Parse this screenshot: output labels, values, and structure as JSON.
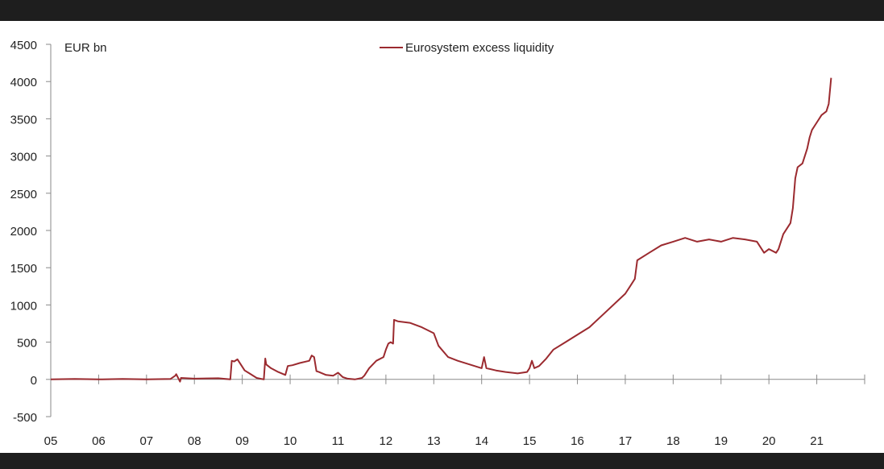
{
  "chart_data": {
    "type": "line",
    "unit_label": "EUR bn",
    "ylim": [
      -500,
      4500
    ],
    "yticks": [
      -500,
      0,
      500,
      1000,
      1500,
      2000,
      2500,
      3000,
      3500,
      4000,
      4500
    ],
    "ytick_labels": [
      "-500",
      "0",
      "500",
      "1000",
      "1500",
      "2000",
      "2500",
      "3000",
      "3500",
      "4000",
      "4500"
    ],
    "xlim": [
      2005,
      2022
    ],
    "xticks": [
      2005,
      2006,
      2007,
      2008,
      2009,
      2010,
      2011,
      2012,
      2013,
      2014,
      2015,
      2016,
      2017,
      2018,
      2019,
      2020,
      2021
    ],
    "xtick_labels": [
      "05",
      "06",
      "07",
      "08",
      "09",
      "10",
      "11",
      "12",
      "13",
      "14",
      "15",
      "16",
      "17",
      "18",
      "19",
      "20",
      "21"
    ],
    "grid": false,
    "legend_position": "top-center",
    "series": [
      {
        "name": "Eurosystem excess liquidity",
        "color": "#9b2a2f",
        "x": [
          2005.0,
          2005.5,
          2006.0,
          2006.5,
          2007.0,
          2007.5,
          2007.6,
          2007.62,
          2007.7,
          2007.72,
          2008.0,
          2008.5,
          2008.75,
          2008.78,
          2008.83,
          2008.9,
          2009.05,
          2009.15,
          2009.3,
          2009.45,
          2009.48,
          2009.5,
          2009.6,
          2009.75,
          2009.9,
          2009.95,
          2010.05,
          2010.2,
          2010.4,
          2010.45,
          2010.5,
          2010.55,
          2010.6,
          2010.75,
          2010.9,
          2011.0,
          2011.1,
          2011.2,
          2011.35,
          2011.5,
          2011.55,
          2011.65,
          2011.8,
          2011.95,
          2012.0,
          2012.05,
          2012.1,
          2012.15,
          2012.17,
          2012.25,
          2012.5,
          2012.75,
          2013.0,
          2013.1,
          2013.3,
          2013.5,
          2013.75,
          2014.0,
          2014.05,
          2014.1,
          2014.3,
          2014.5,
          2014.75,
          2014.95,
          2015.0,
          2015.05,
          2015.1,
          2015.2,
          2015.35,
          2015.5,
          2015.75,
          2016.0,
          2016.25,
          2016.5,
          2016.75,
          2017.0,
          2017.1,
          2017.2,
          2017.25,
          2017.5,
          2017.75,
          2018.0,
          2018.25,
          2018.5,
          2018.75,
          2019.0,
          2019.25,
          2019.5,
          2019.75,
          2019.9,
          2020.0,
          2020.15,
          2020.2,
          2020.3,
          2020.4,
          2020.45,
          2020.5,
          2020.55,
          2020.6,
          2020.7,
          2020.8,
          2020.85,
          2020.9,
          2021.0,
          2021.1,
          2021.2,
          2021.25,
          2021.3
        ],
        "y": [
          0,
          5,
          0,
          5,
          0,
          5,
          50,
          70,
          -30,
          20,
          10,
          15,
          0,
          250,
          240,
          270,
          120,
          80,
          20,
          0,
          280,
          200,
          150,
          100,
          60,
          180,
          190,
          220,
          250,
          320,
          300,
          110,
          100,
          60,
          50,
          90,
          30,
          10,
          0,
          20,
          50,
          150,
          250,
          300,
          400,
          480,
          500,
          480,
          800,
          780,
          760,
          700,
          620,
          450,
          300,
          250,
          200,
          150,
          300,
          150,
          120,
          100,
          80,
          100,
          150,
          250,
          150,
          180,
          280,
          400,
          500,
          600,
          700,
          850,
          1000,
          1150,
          1250,
          1350,
          1600,
          1700,
          1800,
          1850,
          1900,
          1850,
          1880,
          1850,
          1900,
          1880,
          1850,
          1700,
          1750,
          1700,
          1750,
          1950,
          2050,
          2100,
          2300,
          2700,
          2850,
          2900,
          3100,
          3250,
          3350,
          3450,
          3550,
          3600,
          3700,
          4050
        ]
      }
    ]
  }
}
